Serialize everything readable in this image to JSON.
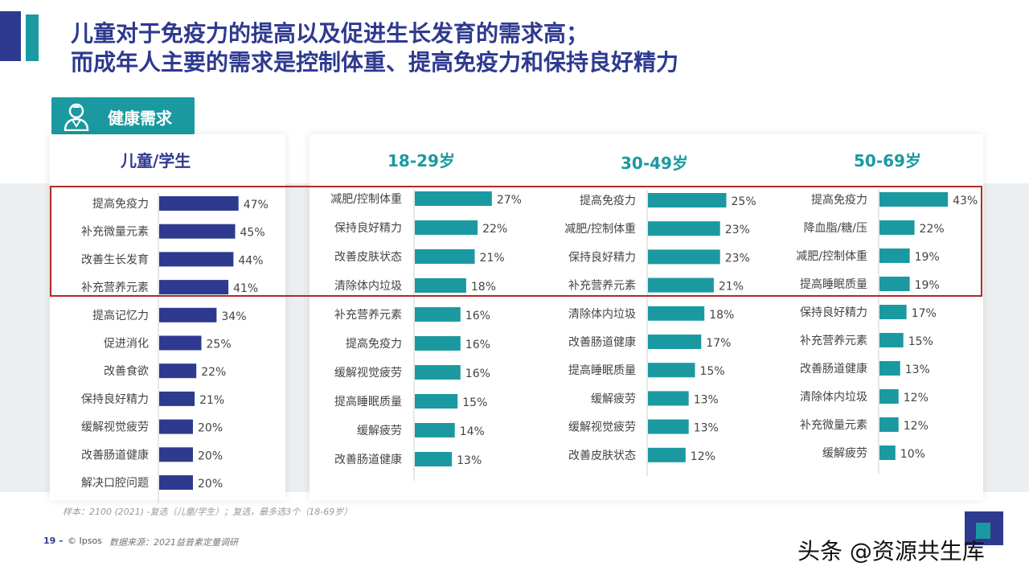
{
  "title": {
    "line1": "儿童对于免疫力的提高以及促进生长发育的需求高；",
    "line2": "而成年人主要的需求是控制体重、提高免疫力和保持良好精力"
  },
  "badge": {
    "label": "健康需求",
    "icon": "doctor-icon"
  },
  "colors": {
    "navy": "#2e3a8f",
    "teal": "#1a9aa0",
    "highlight": "#b02a2a"
  },
  "chart_data": [
    {
      "type": "bar",
      "orientation": "horizontal",
      "title": "儿童/学生",
      "color": "#2e3a8f",
      "categories": [
        "提高免疫力",
        "补充微量元素",
        "改善生长发育",
        "补充营养元素",
        "提高记忆力",
        "促进消化",
        "改善食欲",
        "保持良好精力",
        "缓解视觉疲劳",
        "改善肠道健康",
        "解决口腔问题"
      ],
      "values": [
        47,
        45,
        44,
        41,
        34,
        25,
        22,
        21,
        20,
        20,
        20
      ],
      "labels": [
        "47%",
        "45%",
        "44%",
        "41%",
        "34%",
        "25%",
        "22%",
        "21%",
        "20%",
        "20%",
        "20%"
      ]
    },
    {
      "type": "bar",
      "orientation": "horizontal",
      "title": "18-29岁",
      "color": "#1a9aa0",
      "categories": [
        "减肥/控制体重",
        "保持良好精力",
        "改善皮肤状态",
        "清除体内垃圾",
        "补充营养元素",
        "提高免疫力",
        "缓解视觉疲劳",
        "提高睡眠质量",
        "缓解疲劳",
        "改善肠道健康"
      ],
      "values": [
        27,
        22,
        21,
        18,
        16,
        16,
        16,
        15,
        14,
        13
      ],
      "labels": [
        "27%",
        "22%",
        "21%",
        "18%",
        "16%",
        "16%",
        "16%",
        "15%",
        "14%",
        "13%"
      ]
    },
    {
      "type": "bar",
      "orientation": "horizontal",
      "title": "30-49岁",
      "color": "#1a9aa0",
      "categories": [
        "提高免疫力",
        "减肥/控制体重",
        "保持良好精力",
        "补充营养元素",
        "清除体内垃圾",
        "改善肠道健康",
        "提高睡眠质量",
        "缓解疲劳",
        "缓解视觉疲劳",
        "改善皮肤状态"
      ],
      "values": [
        25,
        23,
        23,
        21,
        18,
        17,
        15,
        13,
        13,
        12
      ],
      "labels": [
        "25%",
        "23%",
        "23%",
        "21%",
        "18%",
        "17%",
        "15%",
        "13%",
        "13%",
        "12%"
      ]
    },
    {
      "type": "bar",
      "orientation": "horizontal",
      "title": "50-69岁",
      "color": "#1a9aa0",
      "categories": [
        "提高免疫力",
        "降血脂/糖/压",
        "减肥/控制体重",
        "提高睡眠质量",
        "保持良好精力",
        "补充营养元素",
        "改善肠道健康",
        "清除体内垃圾",
        "补充微量元素",
        "缓解疲劳"
      ],
      "values": [
        43,
        22,
        19,
        19,
        17,
        15,
        13,
        12,
        12,
        10
      ],
      "labels": [
        "43%",
        "22%",
        "19%",
        "19%",
        "17%",
        "15%",
        "13%",
        "12%",
        "12%",
        "10%"
      ]
    }
  ],
  "footer": {
    "footnote": "样本：2100 (2021) -复选（儿童/学生）；复选，最多选3个（18-69岁）",
    "page": "19 –",
    "brand": "© Ipsos",
    "source": "数据来源：2021益普素定量调研",
    "watermark": "头条 @资源共生库"
  }
}
